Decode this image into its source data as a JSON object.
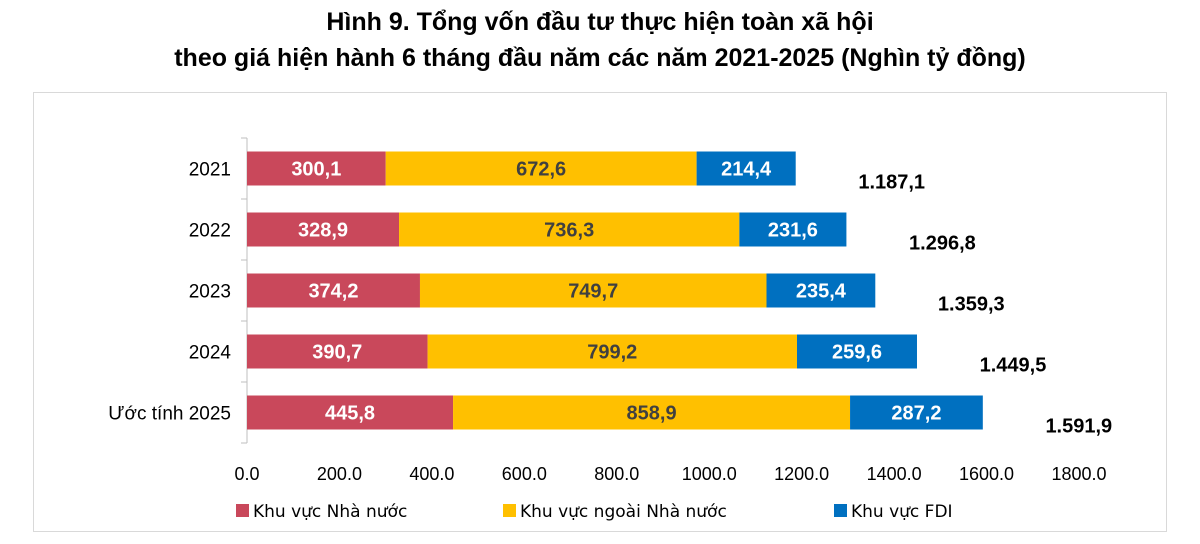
{
  "chart_data": {
    "type": "bar",
    "orientation": "horizontal",
    "stacked": true,
    "title_line1": "Hình 9. Tổng vốn đầu tư thực hiện toàn xã hội",
    "title_line2": "theo giá hiện hành 6 tháng đầu năm các năm 2021-2025 (Nghìn tỷ đồng)",
    "categories": [
      "2021",
      "2022",
      "2023",
      "2024",
      "Ước tính 2025"
    ],
    "series": [
      {
        "name": "Khu vực Nhà nước",
        "color": "#c9485b",
        "label_color": "#ffffff",
        "values": [
          300.1,
          328.9,
          374.2,
          390.7,
          445.8
        ],
        "labels": [
          "300,1",
          "328,9",
          "374,2",
          "390,7",
          "445,8"
        ]
      },
      {
        "name": "Khu vực ngoài Nhà nước",
        "color": "#ffc000",
        "label_color": "#404040",
        "values": [
          672.6,
          736.3,
          749.7,
          799.2,
          858.9
        ],
        "labels": [
          "672,6",
          "736,3",
          "749,7",
          "799,2",
          "858,9"
        ]
      },
      {
        "name": "Khu vực FDI",
        "color": "#0070c0",
        "label_color": "#ffffff",
        "values": [
          214.4,
          231.6,
          235.4,
          259.6,
          287.2
        ],
        "labels": [
          "214,4",
          "231,6",
          "235,4",
          "259,6",
          "287,2"
        ]
      }
    ],
    "totals": [
      1187.1,
      1296.8,
      1359.3,
      1449.5,
      1591.9
    ],
    "total_labels": [
      "1.187,1",
      "1.296,8",
      "1.359,3",
      "1.449,5",
      "1.591,9"
    ],
    "xlim": [
      0,
      1800
    ],
    "xticks": [
      0,
      200,
      400,
      600,
      800,
      1000,
      1200,
      1400,
      1600,
      1800
    ],
    "xtick_labels": [
      "0.0",
      "200.0",
      "400.0",
      "600.0",
      "800.0",
      "1000.0",
      "1200.0",
      "1400.0",
      "1600.0",
      "1800.0"
    ],
    "grid": false,
    "legend_position": "bottom"
  }
}
